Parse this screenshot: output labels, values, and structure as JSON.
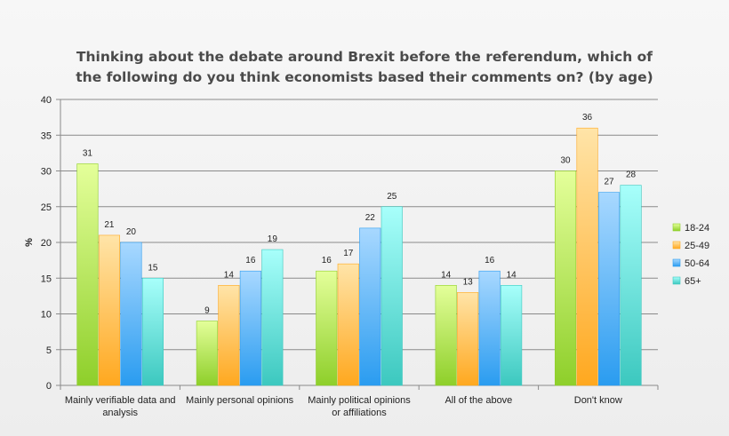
{
  "chart_data": {
    "type": "bar",
    "title": "Thinking about the debate around Brexit before the referendum, which of the following do you think economists based their comments on? (by age)",
    "title_lines": [
      "Thinking about the debate around Brexit before the referendum, which of",
      "the following do you think economists based their comments on? (by age)"
    ],
    "xlabel": "",
    "ylabel": "%",
    "ylim": [
      0,
      40
    ],
    "yticks": [
      0,
      5,
      10,
      15,
      20,
      25,
      30,
      35,
      40
    ],
    "grid": true,
    "legend_position": "right",
    "categories": [
      [
        "Mainly verifiable data and",
        "analysis"
      ],
      [
        "Mainly personal opinions"
      ],
      [
        "Mainly political opinions",
        "or affiliations"
      ],
      [
        "All of the above"
      ],
      [
        "Don't know"
      ]
    ],
    "series": [
      {
        "name": "18-24",
        "color": "#8ecf2a",
        "color_light": "#e4ff9a",
        "values": [
          31,
          9,
          16,
          14,
          30
        ]
      },
      {
        "name": "25-49",
        "color": "#ffa81f",
        "color_light": "#ffe4a8",
        "values": [
          21,
          14,
          17,
          13,
          36
        ]
      },
      {
        "name": "50-64",
        "color": "#2a9cf0",
        "color_light": "#a8d8ff",
        "values": [
          20,
          16,
          22,
          16,
          27
        ]
      },
      {
        "name": "65+",
        "color": "#3cc8bf",
        "color_light": "#a8fffb",
        "values": [
          15,
          19,
          25,
          14,
          28
        ]
      }
    ]
  }
}
